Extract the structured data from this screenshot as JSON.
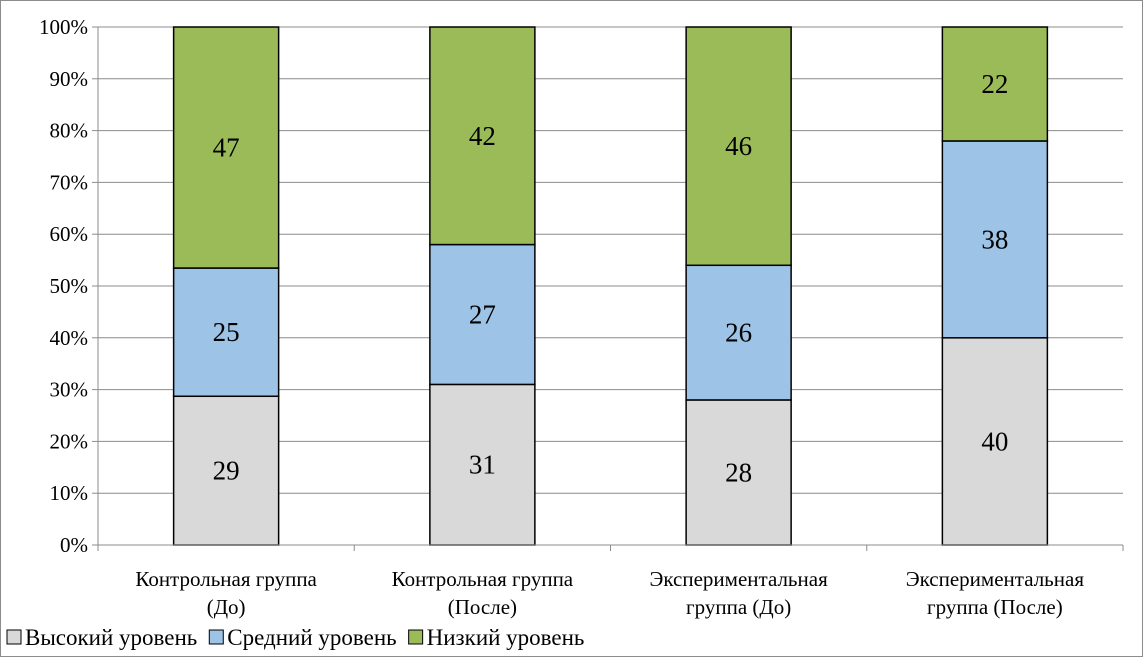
{
  "chart_data": {
    "type": "bar",
    "stacked": true,
    "percent_stacked": true,
    "categories": [
      [
        "Контрольная группа",
        "(До)"
      ],
      [
        "Контрольная группа",
        "(После)"
      ],
      [
        "Экспериментальная",
        "группа (До)"
      ],
      [
        "Экспериментальная",
        "группа (После)"
      ]
    ],
    "series": [
      {
        "name": "Высокий уровень",
        "values": [
          29,
          31,
          28,
          40
        ],
        "color": "#d9d9d9"
      },
      {
        "name": "Средний уровень",
        "values": [
          25,
          27,
          26,
          38
        ],
        "color": "#9dc3e6"
      },
      {
        "name": "Низкий уровень",
        "values": [
          47,
          42,
          46,
          22
        ],
        "color": "#9bbb59"
      }
    ],
    "yticks": [
      "0%",
      "10%",
      "20%",
      "30%",
      "40%",
      "50%",
      "60%",
      "70%",
      "80%",
      "90%",
      "100%"
    ],
    "ylim": [
      0,
      100
    ],
    "grid": true,
    "legend_position": "bottom-left"
  }
}
